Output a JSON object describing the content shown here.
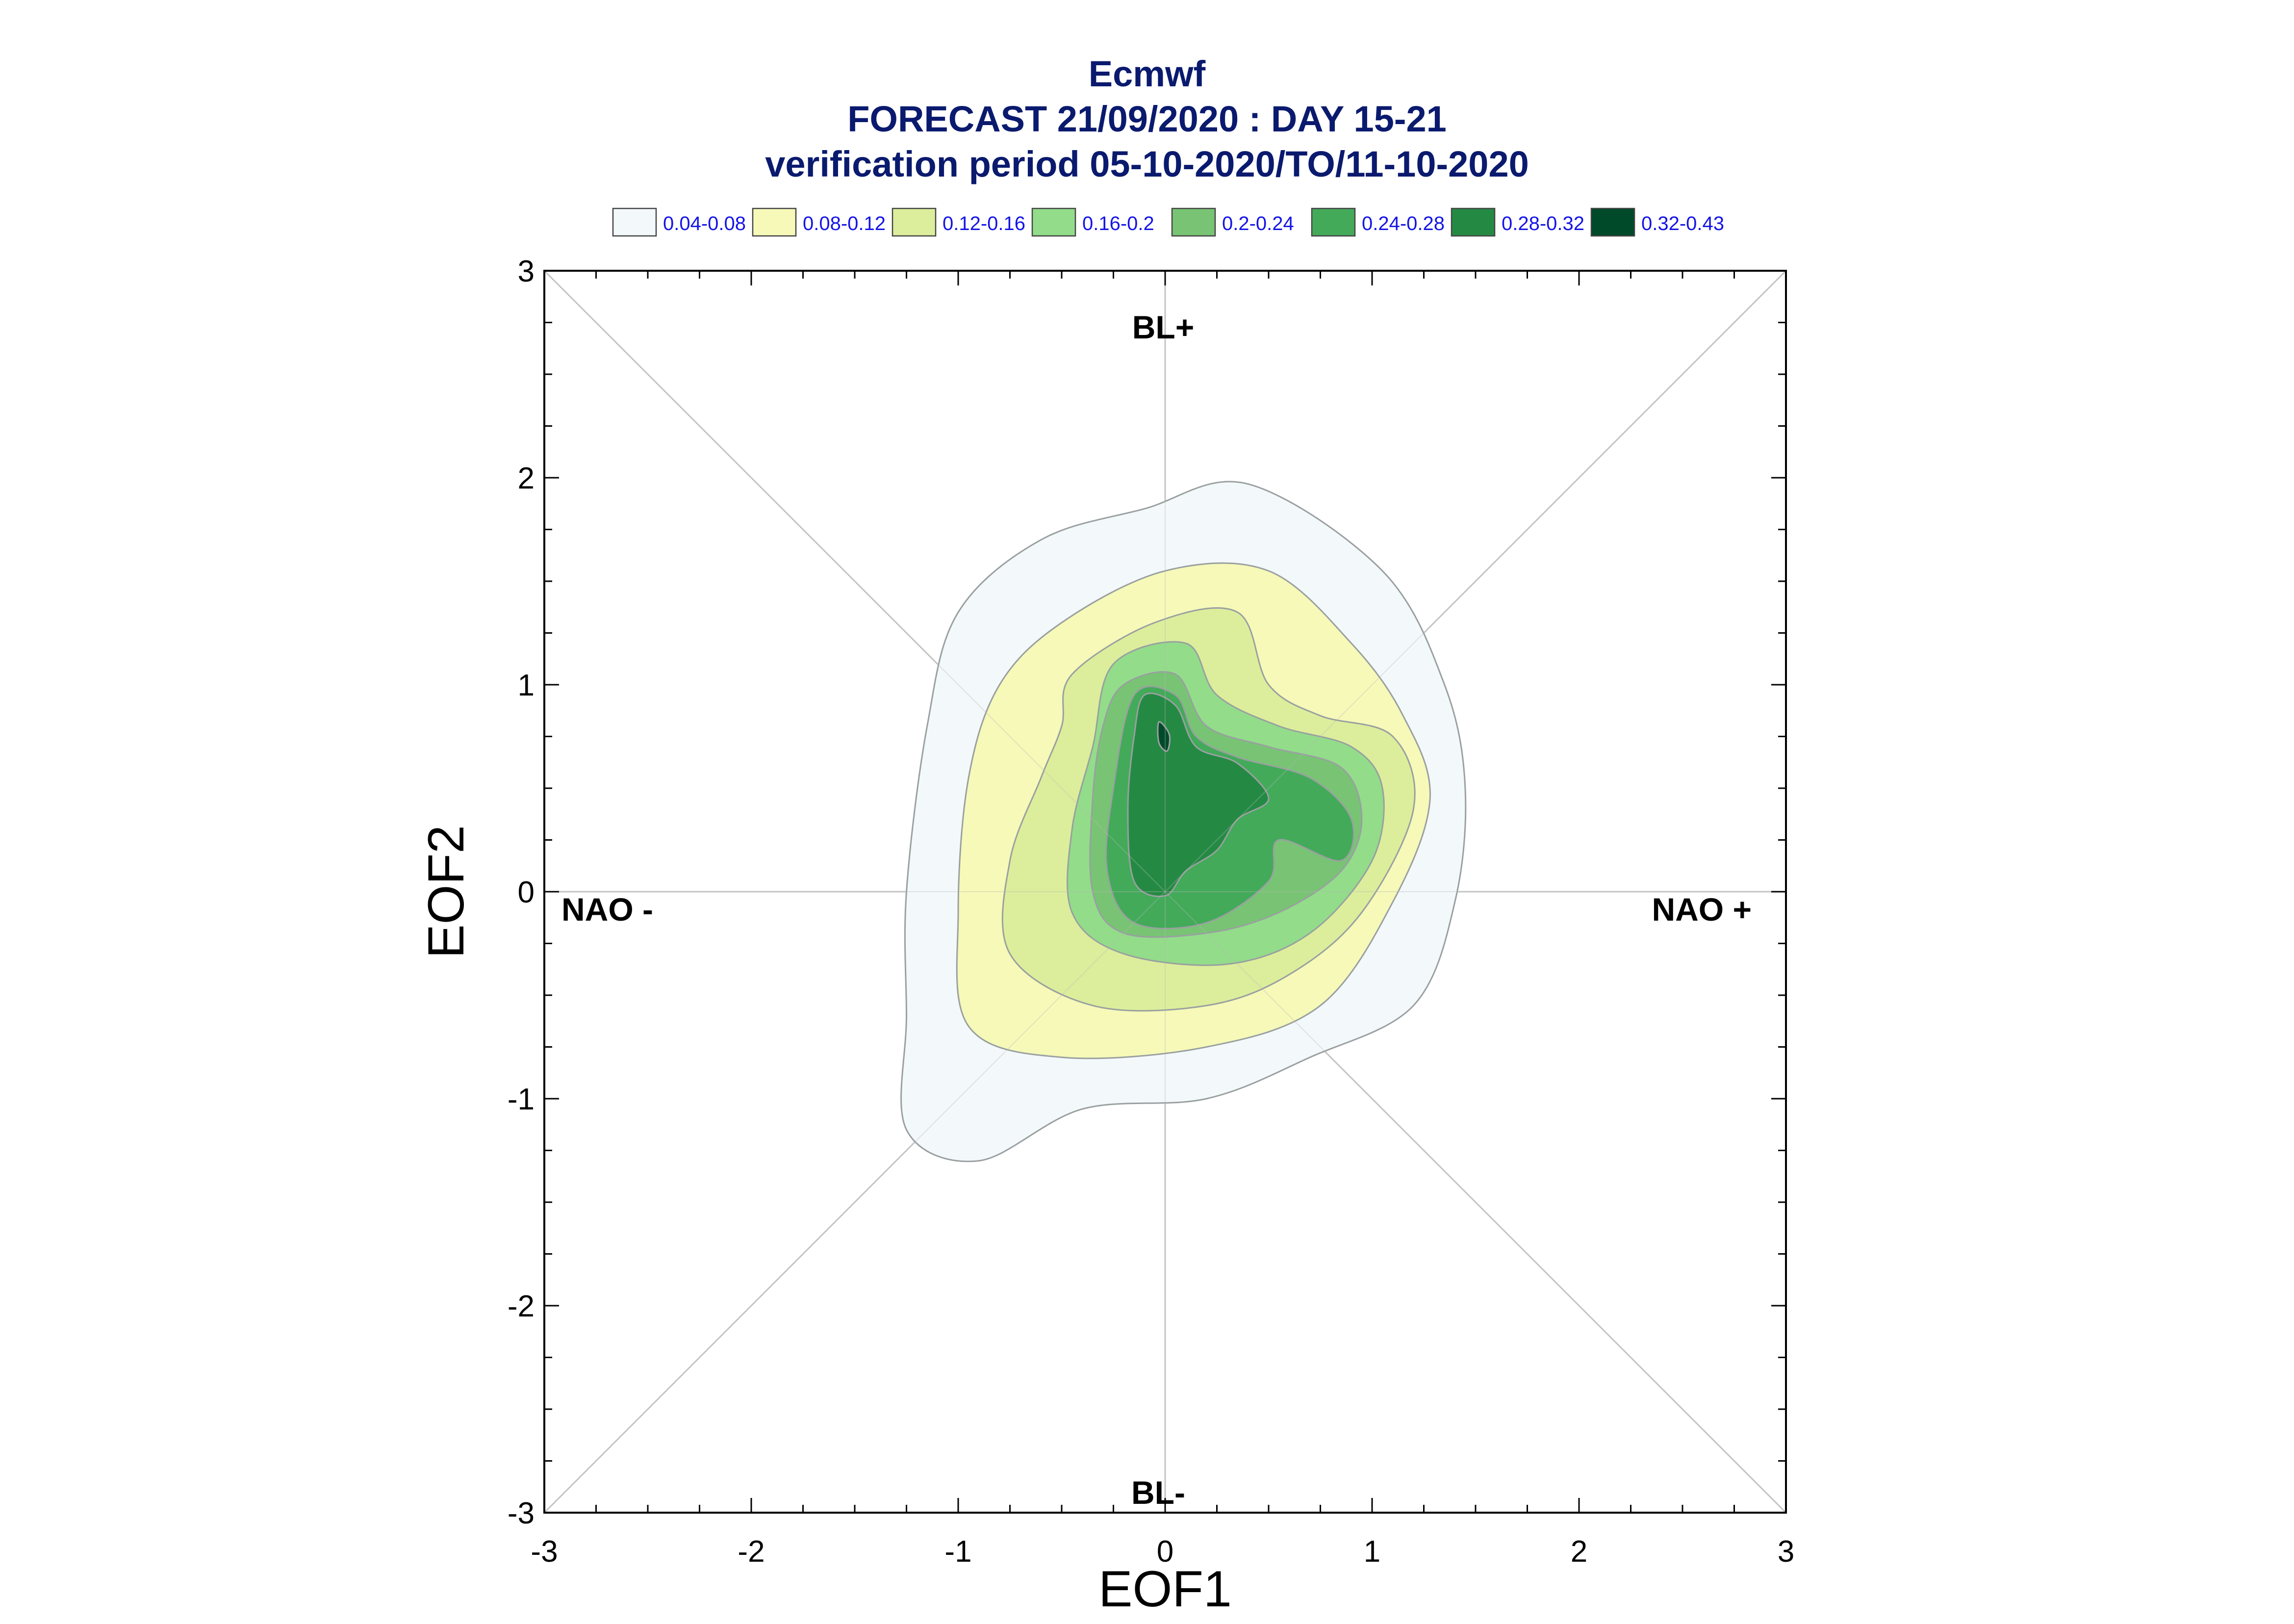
{
  "chart_data": {
    "type": "contour",
    "title_lines": [
      "Ecmwf",
      "FORECAST 21/09/2020 : DAY 15-21",
      "verification period 05-10-2020/TO/11-10-2020"
    ],
    "xlabel": "EOF1",
    "ylabel": "EOF2",
    "xlim": [
      -3,
      3
    ],
    "ylim": [
      -3,
      3
    ],
    "xticks": [
      "-3",
      "-2",
      "-1",
      "0",
      "1",
      "2",
      "3"
    ],
    "yticks": [
      "-3",
      "-2",
      "-1",
      "0",
      "1",
      "2",
      "3"
    ],
    "grid": "center cross and diagonals",
    "legend_placement": "top",
    "legend": [
      {
        "label": "0.04-0.08",
        "color": "#f3f8fb"
      },
      {
        "label": "0.08-0.12",
        "color": "#f6f9b8"
      },
      {
        "label": "0.12-0.16",
        "color": "#dcee9c"
      },
      {
        "label": "0.16-0.2",
        "color": "#92dc8a"
      },
      {
        "label": "0.2-0.24",
        "color": "#78c474"
      },
      {
        "label": "0.24-0.28",
        "color": "#43aa5a"
      },
      {
        "label": "0.28-0.32",
        "color": "#248a43"
      },
      {
        "label": "0.32-0.43",
        "color": "#004a2a"
      }
    ],
    "region_labels": {
      "top": "BL+",
      "bottom": "BL-",
      "left": "NAO -",
      "right": "NAO +"
    },
    "contours": [
      {
        "level": "0.04-0.08",
        "color": "#f3f8fb",
        "points": [
          [
            -0.6,
            1.7
          ],
          [
            -0.1,
            1.85
          ],
          [
            0.4,
            1.97
          ],
          [
            1.05,
            1.55
          ],
          [
            1.35,
            1.0
          ],
          [
            1.45,
            0.5
          ],
          [
            1.4,
            -0.05
          ],
          [
            1.2,
            -0.55
          ],
          [
            0.7,
            -0.8
          ],
          [
            0.2,
            -1.0
          ],
          [
            -0.4,
            -1.05
          ],
          [
            -0.9,
            -1.3
          ],
          [
            -1.25,
            -1.15
          ],
          [
            -1.25,
            -0.6
          ],
          [
            -1.25,
            0.0
          ],
          [
            -1.15,
            0.8
          ],
          [
            -1.0,
            1.35
          ]
        ]
      },
      {
        "level": "0.08-0.12",
        "color": "#f6f9b8",
        "points": [
          [
            -0.5,
            1.3
          ],
          [
            0.0,
            1.55
          ],
          [
            0.5,
            1.55
          ],
          [
            0.9,
            1.2
          ],
          [
            1.15,
            0.85
          ],
          [
            1.28,
            0.45
          ],
          [
            1.1,
            -0.05
          ],
          [
            0.75,
            -0.55
          ],
          [
            0.2,
            -0.75
          ],
          [
            -0.5,
            -0.8
          ],
          [
            -0.95,
            -0.65
          ],
          [
            -1.0,
            -0.1
          ],
          [
            -0.95,
            0.55
          ],
          [
            -0.8,
            1.0
          ]
        ]
      },
      {
        "level": "0.12-0.16",
        "color": "#dcee9c",
        "points": [
          [
            -0.45,
            1.05
          ],
          [
            -0.05,
            1.3
          ],
          [
            0.35,
            1.35
          ],
          [
            0.5,
            1.0
          ],
          [
            0.75,
            0.85
          ],
          [
            1.1,
            0.75
          ],
          [
            1.2,
            0.4
          ],
          [
            0.95,
            -0.1
          ],
          [
            0.6,
            -0.4
          ],
          [
            0.2,
            -0.55
          ],
          [
            -0.35,
            -0.55
          ],
          [
            -0.75,
            -0.3
          ],
          [
            -0.75,
            0.15
          ],
          [
            -0.6,
            0.55
          ],
          [
            -0.5,
            0.8
          ]
        ]
      },
      {
        "level": "0.16-0.2",
        "color": "#92dc8a",
        "points": [
          [
            -0.25,
            1.1
          ],
          [
            0.1,
            1.2
          ],
          [
            0.25,
            0.95
          ],
          [
            0.55,
            0.8
          ],
          [
            0.9,
            0.7
          ],
          [
            1.05,
            0.5
          ],
          [
            1.0,
            0.15
          ],
          [
            0.7,
            -0.2
          ],
          [
            0.3,
            -0.35
          ],
          [
            -0.2,
            -0.3
          ],
          [
            -0.45,
            -0.1
          ],
          [
            -0.45,
            0.3
          ],
          [
            -0.35,
            0.7
          ]
        ]
      },
      {
        "level": "0.2-0.24",
        "color": "#78c474",
        "points": [
          [
            -0.2,
            1.0
          ],
          [
            0.05,
            1.05
          ],
          [
            0.2,
            0.8
          ],
          [
            0.5,
            0.7
          ],
          [
            0.85,
            0.6
          ],
          [
            0.95,
            0.35
          ],
          [
            0.85,
            0.1
          ],
          [
            0.55,
            -0.1
          ],
          [
            0.2,
            -0.2
          ],
          [
            -0.2,
            -0.2
          ],
          [
            -0.35,
            0.0
          ],
          [
            -0.35,
            0.45
          ],
          [
            -0.3,
            0.8
          ]
        ]
      },
      {
        "level": "0.24-0.28",
        "color": "#43aa5a",
        "points": [
          [
            -0.15,
            0.95
          ],
          [
            0.05,
            0.95
          ],
          [
            0.15,
            0.75
          ],
          [
            0.35,
            0.65
          ],
          [
            0.7,
            0.55
          ],
          [
            0.9,
            0.35
          ],
          [
            0.85,
            0.15
          ],
          [
            0.55,
            0.25
          ],
          [
            0.5,
            0.05
          ],
          [
            0.2,
            -0.15
          ],
          [
            -0.15,
            -0.15
          ],
          [
            -0.28,
            0.1
          ],
          [
            -0.25,
            0.5
          ]
        ]
      },
      {
        "level": "0.28-0.32",
        "color": "#248a43",
        "points": [
          [
            -0.1,
            0.95
          ],
          [
            0.05,
            0.9
          ],
          [
            0.15,
            0.7
          ],
          [
            0.35,
            0.62
          ],
          [
            0.5,
            0.45
          ],
          [
            0.35,
            0.35
          ],
          [
            0.25,
            0.2
          ],
          [
            0.1,
            0.1
          ],
          [
            0.0,
            -0.02
          ],
          [
            -0.15,
            0.05
          ],
          [
            -0.18,
            0.4
          ],
          [
            -0.15,
            0.75
          ]
        ]
      },
      {
        "level": "0.32-0.43",
        "color": "#004a2a",
        "points": [
          [
            -0.03,
            0.82
          ],
          [
            0.02,
            0.76
          ],
          [
            0.01,
            0.68
          ],
          [
            -0.03,
            0.72
          ]
        ]
      }
    ]
  }
}
